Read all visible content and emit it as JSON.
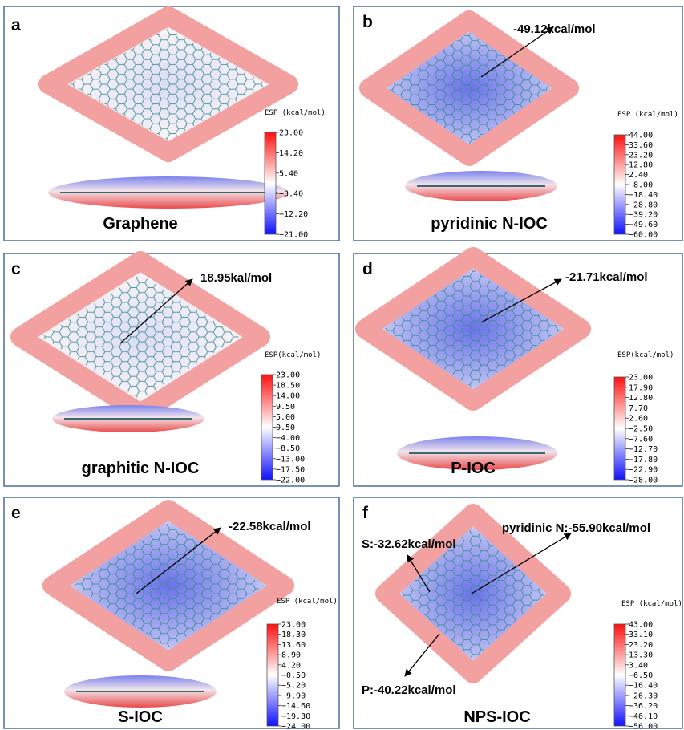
{
  "panels": [
    {
      "letter": "a",
      "name": "Graphene",
      "esp_title": "ESP (kcal/mol)",
      "esp_ticks": [
        "23.00",
        "14.20",
        "5.40",
        "−3.40",
        "−12.20",
        "−21.00"
      ],
      "annotations": []
    },
    {
      "letter": "b",
      "name": "pyridinic N-IOC",
      "esp_title": "ESP (kcal/mol)",
      "esp_ticks": [
        "44.00",
        "33.60",
        "23.20",
        "12.80",
        "2.40",
        "−8.00",
        "−18.40",
        "−28.80",
        "−39.20",
        "−49.60",
        "−60.00"
      ],
      "annotations": [
        "-49.12kcal/mol"
      ]
    },
    {
      "letter": "c",
      "name": "graphitic N-IOC",
      "esp_title": "ESP(kcal/mol)",
      "esp_ticks": [
        "23.00",
        "18.50",
        "14.00",
        "9.50",
        "5.00",
        "0.50",
        "−4.00",
        "−8.50",
        "−13.00",
        "−17.50",
        "−22.00"
      ],
      "annotations": [
        "18.95kal/mol"
      ]
    },
    {
      "letter": "d",
      "name": "P-IOC",
      "esp_title": "ESP(kcal/mol)",
      "esp_ticks": [
        "23.00",
        "17.90",
        "12.80",
        "7.70",
        "2.60",
        "−2.50",
        "−7.60",
        "−12.70",
        "−17.80",
        "−22.90",
        "−28.00"
      ],
      "annotations": [
        "-21.71kcal/mol"
      ]
    },
    {
      "letter": "e",
      "name": "S-IOC",
      "esp_title": "ESP (kcal/mol)",
      "esp_ticks": [
        "23.00",
        "18.30",
        "13.60",
        "8.90",
        "4.20",
        "−0.50",
        "−5.20",
        "−9.90",
        "−14.60",
        "−19.30",
        "−24.00"
      ],
      "annotations": [
        "-22.58kcal/mol"
      ]
    },
    {
      "letter": "f",
      "name": "NPS-IOC",
      "esp_title": "ESP (kcal/mol)",
      "esp_ticks": [
        "43.00",
        "33.10",
        "23.20",
        "13.30",
        "3.40",
        "−6.50",
        "−16.40",
        "−26.30",
        "−36.20",
        "−46.10",
        "−56.00"
      ],
      "annotations": [
        "pyridinic N:-55.90kcal/mol",
        "S:-32.62kcal/mol",
        "P:-40.22kcal/mol"
      ]
    }
  ]
}
